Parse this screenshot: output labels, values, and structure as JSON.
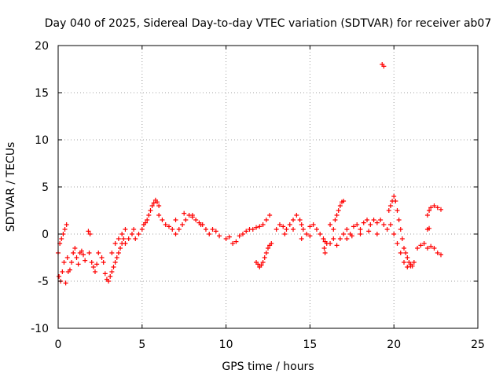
{
  "colors": {
    "series": "#ff0000",
    "grid": "#a0a0a0",
    "axis": "#000000",
    "background": "#ffffff"
  },
  "chart_data": {
    "type": "scatter",
    "title": "Day 040 of 2025, Sidereal Day-to-day VTEC variation (SDTVAR) for receiver ab07",
    "xlabel": "GPS time / hours",
    "ylabel": "SDTVAR / TECUs",
    "xlim": [
      0,
      25
    ],
    "ylim": [
      -10,
      20
    ],
    "xticks": [
      0,
      5,
      10,
      15,
      20,
      25
    ],
    "yticks": [
      -10,
      -5,
      0,
      5,
      10,
      15,
      20
    ],
    "xtick_labels": [
      "0",
      "5",
      "10",
      "15",
      "20",
      "25"
    ],
    "ytick_labels": [
      "-10",
      "-5",
      "0",
      "5",
      "10",
      "15",
      "20"
    ],
    "grid": true,
    "marker": "plus",
    "series": [
      {
        "name": "SDTVAR",
        "points": [
          [
            0.0,
            -2.0
          ],
          [
            0.05,
            -4.5
          ],
          [
            0.1,
            -1.0
          ],
          [
            0.15,
            -5.0
          ],
          [
            0.2,
            -0.5
          ],
          [
            0.25,
            -4.0
          ],
          [
            0.3,
            0.0
          ],
          [
            0.35,
            -3.0
          ],
          [
            0.4,
            0.5
          ],
          [
            0.45,
            -5.2
          ],
          [
            0.5,
            1.0
          ],
          [
            0.55,
            -2.5
          ],
          [
            0.6,
            -4.0
          ],
          [
            0.7,
            -3.8
          ],
          [
            0.8,
            -3.0
          ],
          [
            0.9,
            -2.0
          ],
          [
            1.0,
            -1.5
          ],
          [
            1.1,
            -2.5
          ],
          [
            1.2,
            -3.2
          ],
          [
            1.3,
            -2.0
          ],
          [
            1.4,
            -1.8
          ],
          [
            1.5,
            -2.2
          ],
          [
            1.6,
            -2.8
          ],
          [
            1.8,
            0.3
          ],
          [
            1.9,
            0.0
          ],
          [
            1.85,
            -2.0
          ],
          [
            2.0,
            -3.0
          ],
          [
            2.1,
            -3.5
          ],
          [
            2.2,
            -4.0
          ],
          [
            2.3,
            -3.2
          ],
          [
            2.4,
            -2.0
          ],
          [
            2.6,
            -2.5
          ],
          [
            2.7,
            -3.0
          ],
          [
            2.8,
            -4.2
          ],
          [
            2.9,
            -4.8
          ],
          [
            3.0,
            -5.0
          ],
          [
            3.1,
            -4.5
          ],
          [
            3.2,
            -4.0
          ],
          [
            3.3,
            -3.5
          ],
          [
            3.4,
            -3.0
          ],
          [
            3.5,
            -2.5
          ],
          [
            3.6,
            -2.0
          ],
          [
            3.7,
            -1.5
          ],
          [
            3.8,
            -1.0
          ],
          [
            3.9,
            -0.5
          ],
          [
            3.2,
            -2.0
          ],
          [
            3.4,
            -1.0
          ],
          [
            3.6,
            -0.5
          ],
          [
            3.8,
            0.0
          ],
          [
            4.0,
            0.5
          ],
          [
            4.0,
            -1.0
          ],
          [
            4.2,
            -0.5
          ],
          [
            4.4,
            0.0
          ],
          [
            4.5,
            0.5
          ],
          [
            4.6,
            -0.5
          ],
          [
            4.8,
            0.0
          ],
          [
            5.0,
            0.5
          ],
          [
            5.1,
            1.0
          ],
          [
            5.2,
            1.2
          ],
          [
            5.3,
            1.5
          ],
          [
            5.4,
            2.0
          ],
          [
            5.5,
            2.5
          ],
          [
            5.6,
            3.0
          ],
          [
            5.7,
            3.3
          ],
          [
            5.8,
            3.6
          ],
          [
            5.9,
            3.4
          ],
          [
            6.0,
            3.0
          ],
          [
            6.0,
            2.0
          ],
          [
            6.2,
            1.5
          ],
          [
            6.4,
            1.0
          ],
          [
            6.6,
            0.8
          ],
          [
            6.8,
            0.5
          ],
          [
            7.0,
            0.0
          ],
          [
            7.2,
            0.5
          ],
          [
            7.4,
            1.0
          ],
          [
            7.6,
            1.5
          ],
          [
            7.8,
            2.0
          ],
          [
            8.0,
            1.8
          ],
          [
            8.2,
            1.5
          ],
          [
            8.4,
            1.2
          ],
          [
            8.6,
            1.0
          ],
          [
            8.8,
            0.5
          ],
          [
            9.0,
            0.0
          ],
          [
            7.0,
            1.5
          ],
          [
            7.5,
            2.2
          ],
          [
            8.0,
            2.0
          ],
          [
            8.5,
            1.0
          ],
          [
            9.2,
            0.5
          ],
          [
            9.4,
            0.3
          ],
          [
            9.6,
            -0.2
          ],
          [
            10.0,
            -0.5
          ],
          [
            10.2,
            -0.3
          ],
          [
            10.4,
            -1.0
          ],
          [
            10.6,
            -0.8
          ],
          [
            10.8,
            -0.2
          ],
          [
            11.0,
            0.0
          ],
          [
            11.2,
            0.3
          ],
          [
            11.4,
            0.5
          ],
          [
            11.6,
            0.5
          ],
          [
            11.8,
            0.7
          ],
          [
            12.0,
            0.8
          ],
          [
            12.2,
            1.0
          ],
          [
            12.4,
            1.5
          ],
          [
            12.6,
            2.0
          ],
          [
            11.8,
            -3.0
          ],
          [
            11.9,
            -3.2
          ],
          [
            12.0,
            -3.5
          ],
          [
            12.1,
            -3.3
          ],
          [
            12.2,
            -3.0
          ],
          [
            12.3,
            -2.5
          ],
          [
            12.4,
            -2.0
          ],
          [
            12.5,
            -1.5
          ],
          [
            12.6,
            -1.2
          ],
          [
            12.7,
            -1.0
          ],
          [
            13.0,
            0.5
          ],
          [
            13.2,
            1.0
          ],
          [
            13.4,
            0.8
          ],
          [
            13.6,
            0.5
          ],
          [
            13.8,
            1.0
          ],
          [
            14.0,
            1.5
          ],
          [
            14.2,
            2.0
          ],
          [
            14.4,
            1.5
          ],
          [
            14.5,
            1.0
          ],
          [
            14.6,
            0.5
          ],
          [
            14.8,
            0.0
          ],
          [
            15.0,
            -0.2
          ],
          [
            13.5,
            0.0
          ],
          [
            14.0,
            0.5
          ],
          [
            14.5,
            -0.5
          ],
          [
            15.0,
            0.8
          ],
          [
            15.2,
            1.0
          ],
          [
            15.4,
            0.5
          ],
          [
            15.6,
            0.0
          ],
          [
            15.8,
            -0.5
          ],
          [
            15.9,
            -0.8
          ],
          [
            15.85,
            -1.5
          ],
          [
            15.9,
            -2.0
          ],
          [
            16.0,
            -1.0
          ],
          [
            16.2,
            1.0
          ],
          [
            16.4,
            0.5
          ],
          [
            16.5,
            1.5
          ],
          [
            16.6,
            2.0
          ],
          [
            16.7,
            2.5
          ],
          [
            16.8,
            3.0
          ],
          [
            16.9,
            3.4
          ],
          [
            17.0,
            3.5
          ],
          [
            16.2,
            -1.0
          ],
          [
            16.4,
            -0.5
          ],
          [
            16.6,
            -1.2
          ],
          [
            16.8,
            -0.5
          ],
          [
            17.0,
            0.0
          ],
          [
            17.2,
            0.5
          ],
          [
            17.4,
            0.0
          ],
          [
            17.6,
            0.8
          ],
          [
            17.8,
            1.0
          ],
          [
            18.0,
            0.5
          ],
          [
            18.2,
            1.2
          ],
          [
            18.4,
            1.5
          ],
          [
            18.6,
            1.0
          ],
          [
            18.8,
            1.5
          ],
          [
            19.0,
            1.2
          ],
          [
            19.2,
            1.5
          ],
          [
            19.4,
            1.0
          ],
          [
            19.6,
            0.5
          ],
          [
            17.2,
            -0.5
          ],
          [
            17.5,
            -0.2
          ],
          [
            18.0,
            0.0
          ],
          [
            18.5,
            0.3
          ],
          [
            19.0,
            0.0
          ],
          [
            19.3,
            18.0
          ],
          [
            19.4,
            17.8
          ],
          [
            19.7,
            2.5
          ],
          [
            19.8,
            3.0
          ],
          [
            19.9,
            3.5
          ],
          [
            20.0,
            4.0
          ],
          [
            20.1,
            3.5
          ],
          [
            20.2,
            2.5
          ],
          [
            20.3,
            1.5
          ],
          [
            20.4,
            0.5
          ],
          [
            20.5,
            -0.5
          ],
          [
            20.6,
            -1.5
          ],
          [
            20.7,
            -2.0
          ],
          [
            20.8,
            -2.5
          ],
          [
            20.9,
            -3.0
          ],
          [
            21.0,
            -3.2
          ],
          [
            21.1,
            -3.4
          ],
          [
            21.2,
            -3.0
          ],
          [
            19.8,
            1.0
          ],
          [
            20.0,
            0.0
          ],
          [
            20.2,
            -1.0
          ],
          [
            20.4,
            -2.0
          ],
          [
            20.6,
            -3.0
          ],
          [
            20.8,
            -3.5
          ],
          [
            21.0,
            -3.4
          ],
          [
            21.4,
            -1.5
          ],
          [
            21.6,
            -1.2
          ],
          [
            21.8,
            -1.0
          ],
          [
            22.0,
            -1.5
          ],
          [
            22.2,
            -1.3
          ],
          [
            22.4,
            -1.5
          ],
          [
            22.6,
            -2.0
          ],
          [
            22.8,
            -2.2
          ],
          [
            22.0,
            2.0
          ],
          [
            22.1,
            2.5
          ],
          [
            22.2,
            2.8
          ],
          [
            22.4,
            3.0
          ],
          [
            22.6,
            2.8
          ],
          [
            22.8,
            2.6
          ],
          [
            22.0,
            0.5
          ],
          [
            22.1,
            0.6
          ]
        ]
      }
    ]
  }
}
